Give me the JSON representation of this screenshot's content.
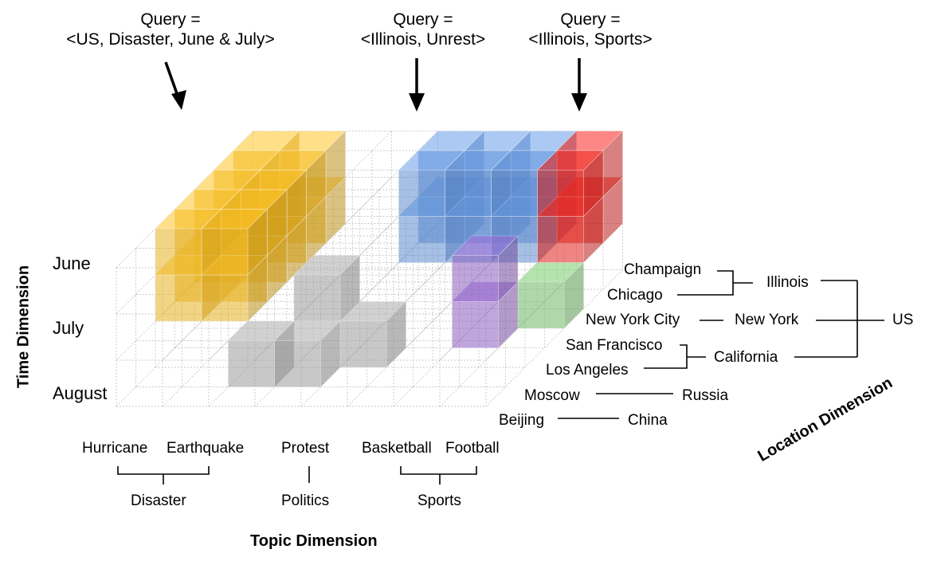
{
  "queries": [
    {
      "line1": "Query =",
      "line2": "<US, Disaster, June & July>"
    },
    {
      "line1": "Query =",
      "line2": "<Illinois, Unrest>"
    },
    {
      "line1": "Query =",
      "line2": "<Illinois, Sports>"
    }
  ],
  "time_dimension": {
    "title": "Time Dimension",
    "values": [
      "June",
      "July",
      "August"
    ]
  },
  "topic_dimension": {
    "title": "Topic Dimension",
    "leaves": [
      "Hurricane",
      "Earthquake",
      "Protest",
      "Basketball",
      "Football"
    ],
    "groups": [
      "Disaster",
      "Politics",
      "Sports"
    ]
  },
  "location_dimension": {
    "title": "Location Dimension",
    "cities": [
      "Champaign",
      "Chicago",
      "New York City",
      "San Francisco",
      "Los Angeles",
      "Moscow",
      "Beijing"
    ],
    "states": [
      "Illinois",
      "New York",
      "California",
      "Russia",
      "China"
    ],
    "country": "US"
  },
  "colors": {
    "disaster_query": "#e8b020",
    "unrest_query": "#5b8bd0",
    "sports_query": "#e0201c",
    "purple_cells": "#8a5cc0",
    "green_cells": "#6db860",
    "gray_cells": "#9a9a9a",
    "grid": "#c8c8c8"
  }
}
